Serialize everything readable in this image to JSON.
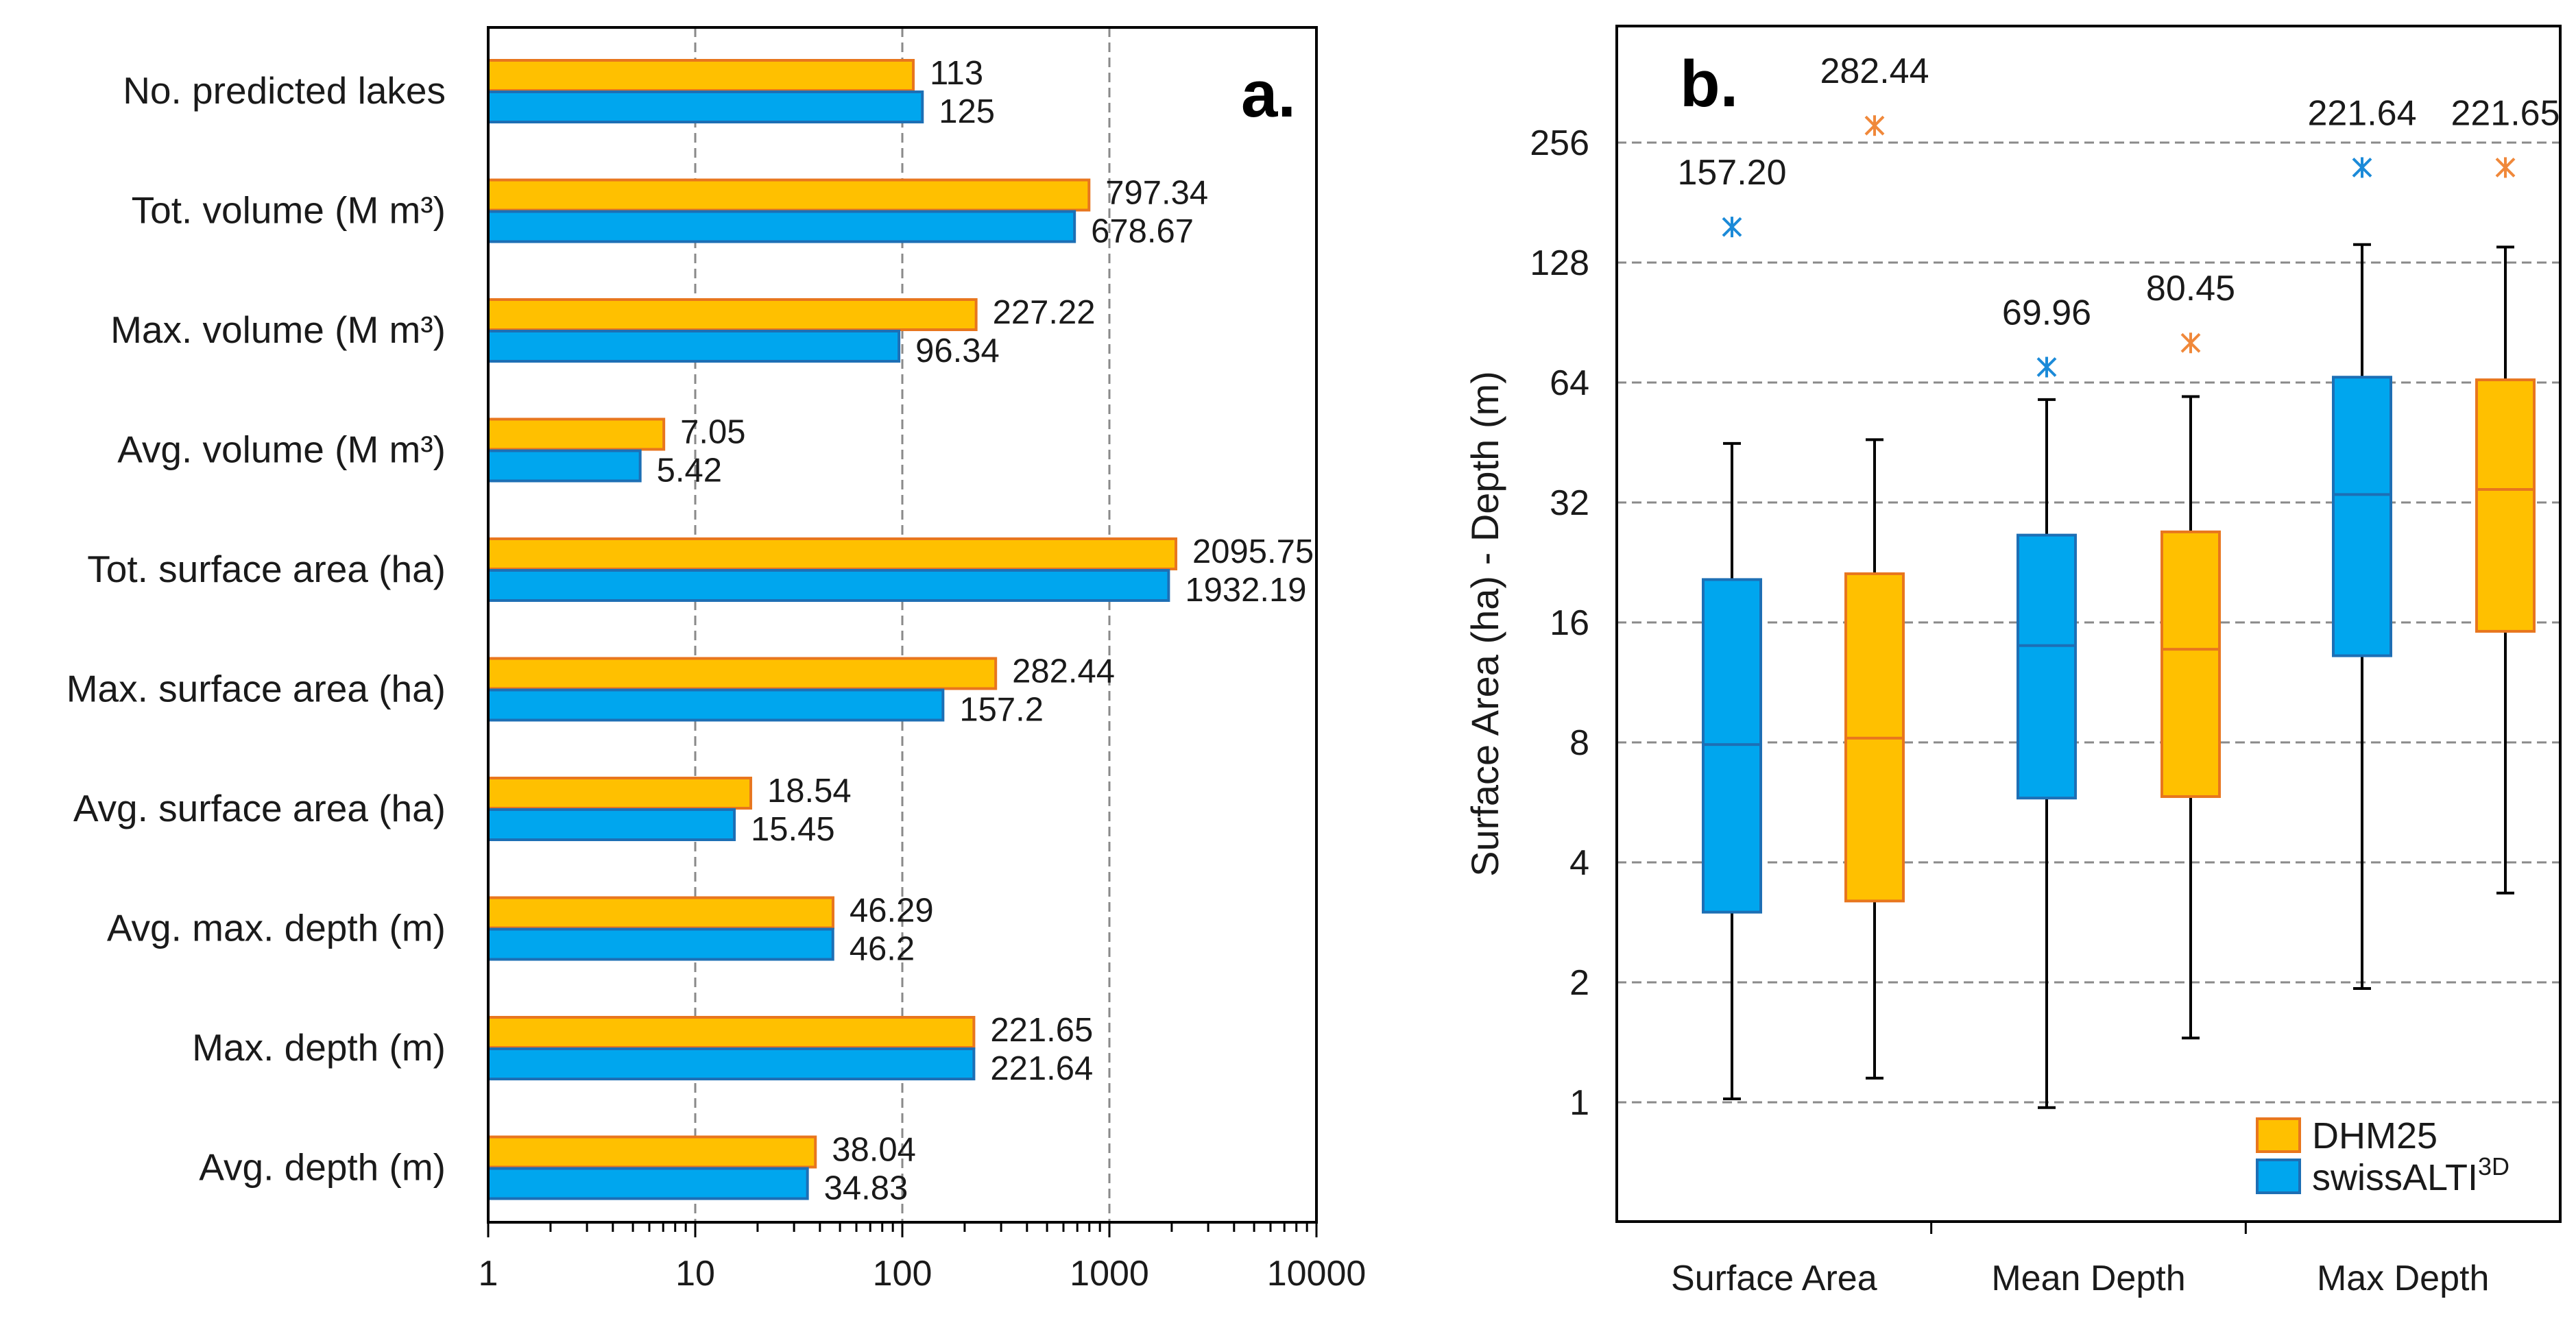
{
  "colors": {
    "dhm25_fill": "#FFC000",
    "dhm25_edge": "#E8761E",
    "swissalti_fill": "#00A6EE",
    "swissalti_edge": "#1D6FB5",
    "outlier_dhm25": "#F0883A",
    "outlier_swissalti": "#1B8AD8"
  },
  "chart_data": [
    {
      "type": "bar",
      "orientation": "horizontal",
      "panel_label": "a.",
      "xscale": "log",
      "xlim": [
        1,
        10000
      ],
      "xticks": [
        "1",
        "10",
        "100",
        "1000",
        "10000"
      ],
      "categories": [
        "No. predicted lakes",
        "Tot. volume (M m³)",
        "Max. volume (M m³)",
        "Avg. volume (M m³)",
        "Tot. surface area (ha)",
        "Max. surface area (ha)",
        "Avg. surface area (ha)",
        "Avg. max. depth (m)",
        "Max. depth (m)",
        "Avg. depth (m)"
      ],
      "series": [
        {
          "name": "DHM25",
          "values": [
            113,
            797.34,
            227.22,
            7.05,
            2095.75,
            282.44,
            18.54,
            46.29,
            221.65,
            38.04
          ],
          "labels": [
            "113",
            "797.34",
            "227.22",
            "7.05",
            "2095.75",
            "282.44",
            "18.54",
            "46.29",
            "221.65",
            "38.04"
          ]
        },
        {
          "name": "swissALTI3D",
          "values": [
            125,
            678.67,
            96.34,
            5.42,
            1932.19,
            157.2,
            15.45,
            46.2,
            221.64,
            34.83
          ],
          "labels": [
            "125",
            "678.67",
            "96.34",
            "5.42",
            "1932.19",
            "157.2",
            "15.45",
            "46.2",
            "221.64",
            "34.83"
          ]
        }
      ]
    },
    {
      "type": "boxplot",
      "panel_label": "b.",
      "yscale": "log2",
      "ylabel": "Surface Area (ha) - Depth (m)",
      "ylim": [
        0.5,
        512
      ],
      "yticks": [
        "1",
        "2",
        "4",
        "8",
        "16",
        "32",
        "64",
        "128",
        "256"
      ],
      "categories": [
        "Surface Area",
        "Mean Depth",
        "Max Depth"
      ],
      "legend": [
        "DHM25",
        "swissALTI"
      ],
      "legend_superscript": "3D",
      "boxes": [
        {
          "group": "Surface Area",
          "series": "swissALTI3D",
          "min": 1.02,
          "q1": 3.0,
          "median": 7.9,
          "q3": 20.5,
          "max": 45,
          "outlier": 157.2,
          "outlier_label": "157.20"
        },
        {
          "group": "Surface Area",
          "series": "DHM25",
          "min": 1.15,
          "q1": 3.2,
          "median": 8.2,
          "q3": 21.2,
          "max": 46,
          "outlier": 282.44,
          "outlier_label": "282.44"
        },
        {
          "group": "Mean Depth",
          "series": "swissALTI3D",
          "min": 0.97,
          "q1": 5.8,
          "median": 14.0,
          "q3": 26.5,
          "max": 58,
          "outlier": 69.96,
          "outlier_label": "69.96"
        },
        {
          "group": "Mean Depth",
          "series": "DHM25",
          "min": 1.45,
          "q1": 5.85,
          "median": 13.7,
          "q3": 27.0,
          "max": 59,
          "outlier": 80.45,
          "outlier_label": "80.45"
        },
        {
          "group": "Max Depth",
          "series": "swissALTI3D",
          "min": 1.93,
          "q1": 13.2,
          "median": 33.5,
          "q3": 66,
          "max": 142,
          "outlier": 221.64,
          "outlier_label": "221.64"
        },
        {
          "group": "Max Depth",
          "series": "DHM25",
          "min": 3.35,
          "q1": 15.2,
          "median": 34.5,
          "q3": 65,
          "max": 140,
          "outlier": 221.65,
          "outlier_label": "221.65"
        }
      ]
    }
  ]
}
